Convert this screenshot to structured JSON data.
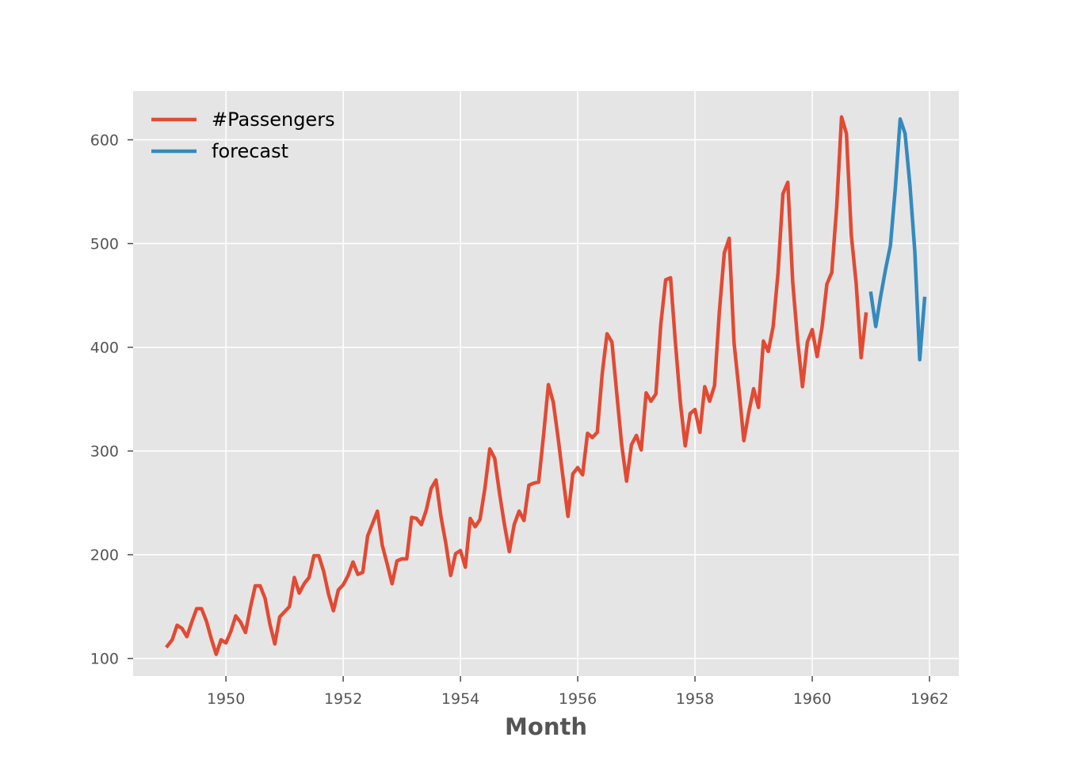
{
  "chart_data": {
    "type": "line",
    "title": "",
    "xlabel": "Month",
    "ylabel": "",
    "xlim": [
      "1948-06",
      "1962-07"
    ],
    "ylim": [
      83,
      647
    ],
    "x_ticks": [
      {
        "date": "1950-01",
        "label": "1950"
      },
      {
        "date": "1952-01",
        "label": "1952"
      },
      {
        "date": "1954-01",
        "label": "1954"
      },
      {
        "date": "1956-01",
        "label": "1956"
      },
      {
        "date": "1958-01",
        "label": "1958"
      },
      {
        "date": "1960-01",
        "label": "1960"
      },
      {
        "date": "1962-01",
        "label": "1962"
      }
    ],
    "y_ticks": [
      100,
      200,
      300,
      400,
      500,
      600
    ],
    "grid": true,
    "legend_position": "top-left",
    "series": [
      {
        "name": "#Passengers",
        "color": "#E24A33",
        "start": "1949-01",
        "values": [
          112,
          118,
          132,
          129,
          121,
          135,
          148,
          148,
          136,
          119,
          104,
          118,
          115,
          126,
          141,
          135,
          125,
          149,
          170,
          170,
          158,
          133,
          114,
          140,
          145,
          150,
          178,
          163,
          172,
          178,
          199,
          199,
          184,
          162,
          146,
          166,
          171,
          180,
          193,
          181,
          183,
          218,
          230,
          242,
          209,
          191,
          172,
          194,
          196,
          196,
          236,
          235,
          229,
          243,
          264,
          272,
          237,
          211,
          180,
          201,
          204,
          188,
          235,
          227,
          234,
          264,
          302,
          293,
          259,
          229,
          203,
          229,
          242,
          233,
          267,
          269,
          270,
          315,
          364,
          347,
          312,
          274,
          237,
          278,
          284,
          277,
          317,
          313,
          318,
          374,
          413,
          405,
          355,
          306,
          271,
          306,
          315,
          301,
          356,
          348,
          355,
          422,
          465,
          467,
          404,
          347,
          305,
          336,
          340,
          318,
          362,
          348,
          363,
          435,
          491,
          505,
          404,
          359,
          310,
          337,
          360,
          342,
          406,
          396,
          420,
          472,
          548,
          559,
          463,
          407,
          362,
          405,
          417,
          391,
          419,
          461,
          472,
          535,
          622,
          606,
          508,
          461,
          390,
          432
        ]
      },
      {
        "name": "forecast",
        "color": "#348ABD",
        "start": "1961-01",
        "values": [
          452,
          420,
          449,
          475,
          498,
          553,
          620,
          606,
          556,
          492,
          388,
          447
        ]
      }
    ]
  }
}
